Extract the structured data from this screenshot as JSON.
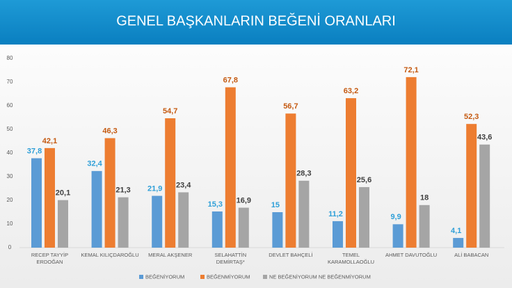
{
  "chart_data": {
    "type": "bar",
    "title": "GENEL BAŞKANLARIN BEĞENİ ORANLARI",
    "categories": [
      "RECEP TAYYİP ERDOĞAN",
      "KEMAL KILIÇDAROĞLU",
      "MERAL AKŞENER",
      "SELAHATTİN DEMİRTAŞ*",
      "DEVLET BAHÇELİ",
      "TEMEL KARAMOLLAOĞLU",
      "AHMET DAVUTOĞLU",
      "ALİ BABACAN"
    ],
    "series": [
      {
        "name": "BEĞENİYORUM",
        "color": "#5b9bd5",
        "values": [
          37.8,
          32.4,
          21.9,
          15.3,
          15,
          11.2,
          9.9,
          4.1
        ],
        "value_labels": [
          "37,8",
          "32,4",
          "21,9",
          "15,3",
          "15",
          "11,2",
          "9,9",
          "4,1"
        ]
      },
      {
        "name": "BEĞENMİYORUM",
        "color": "#ed7d31",
        "values": [
          42.1,
          46.3,
          54.7,
          67.8,
          56.7,
          63.2,
          72.1,
          52.3
        ],
        "value_labels": [
          "42,1",
          "46,3",
          "54,7",
          "67,8",
          "56,7",
          "63,2",
          "72,1",
          "52,3"
        ]
      },
      {
        "name": "NE BEĞENİYORUM NE BEĞENMİYORUM",
        "color": "#a5a5a5",
        "values": [
          20.1,
          21.3,
          23.4,
          16.9,
          28.3,
          25.6,
          18,
          43.6
        ],
        "value_labels": [
          "20,1",
          "21,3",
          "23,4",
          "16,9",
          "28,3",
          "25,6",
          "18",
          "43,6"
        ]
      }
    ],
    "ylim": [
      0,
      80
    ],
    "yticks": [
      0,
      10,
      20,
      30,
      40,
      50,
      60,
      70,
      80
    ]
  }
}
